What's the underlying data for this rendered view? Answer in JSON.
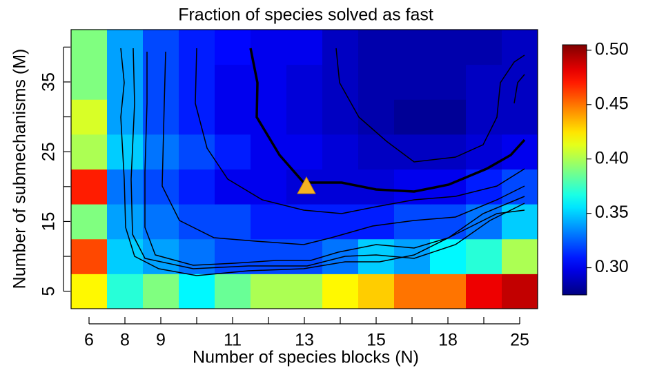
{
  "chart_data": {
    "type": "heatmap",
    "title": "Fraction of species solved as fast",
    "x_label": "Number of species blocks (N)",
    "y_label": "Number of submechanisms (M)",
    "categories": [
      "6",
      "8",
      "9",
      null,
      "11",
      null,
      "13",
      null,
      "15",
      null,
      "18",
      null,
      "25"
    ],
    "y_categories": [
      "5",
      null,
      "15",
      null,
      "25",
      null,
      "35",
      null
    ],
    "values": [
      [
        0.42,
        0.37,
        0.39,
        0.36,
        0.385,
        0.4,
        0.4,
        0.42,
        0.43,
        0.45,
        0.45,
        0.48,
        0.49
      ],
      [
        0.46,
        0.35,
        0.34,
        0.33,
        0.32,
        0.32,
        0.32,
        0.33,
        0.35,
        0.34,
        0.36,
        0.37,
        0.4
      ],
      [
        0.39,
        0.34,
        0.33,
        0.32,
        0.32,
        0.31,
        0.31,
        0.31,
        0.31,
        0.32,
        0.32,
        0.33,
        0.35
      ],
      [
        0.47,
        0.33,
        0.32,
        0.31,
        0.3,
        0.3,
        0.295,
        0.295,
        0.295,
        0.3,
        0.3,
        0.31,
        0.32
      ],
      [
        0.4,
        0.35,
        0.33,
        0.32,
        0.31,
        0.3,
        0.3,
        0.295,
        0.29,
        0.29,
        0.29,
        0.295,
        0.3
      ],
      [
        0.41,
        0.34,
        0.32,
        0.31,
        0.3,
        0.3,
        0.295,
        0.29,
        0.285,
        0.28,
        0.28,
        0.29,
        0.29
      ],
      [
        0.39,
        0.34,
        0.32,
        0.31,
        0.3,
        0.3,
        0.295,
        0.29,
        0.285,
        0.285,
        0.285,
        0.29,
        0.29
      ],
      [
        0.39,
        0.34,
        0.32,
        0.31,
        0.305,
        0.3,
        0.3,
        0.29,
        0.285,
        0.285,
        0.285,
        0.285,
        0.29
      ]
    ],
    "colormap": "jet",
    "zlim": [
      0.275,
      0.505
    ],
    "zticks": [
      {
        "value": 0.3,
        "label": "0.30"
      },
      0.35,
      {
        "value": 0.4,
        "label": "0.40"
      },
      0.45,
      {
        "value": 0.5,
        "label": "0.50"
      }
    ]
  }
}
